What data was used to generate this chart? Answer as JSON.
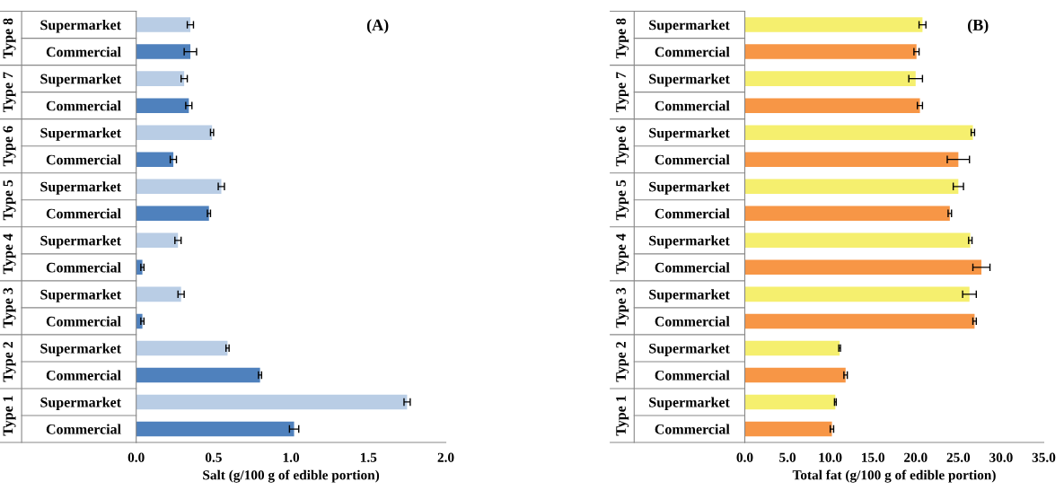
{
  "chart_data": [
    {
      "type": "bar",
      "orientation": "horizontal",
      "title": "(A)",
      "xlabel": "Salt (g/100 g of edible portion)",
      "categories": [
        "Supermarket",
        "Commercial",
        "Supermarket",
        "Commercial",
        "Supermarket",
        "Commercial",
        "Supermarket",
        "Commercial",
        "Supermarket",
        "Commercial",
        "Supermarket",
        "Commercial",
        "Supermarket",
        "Commercial",
        "Supermarket",
        "Commercial"
      ],
      "annotations": [
        "Type 8",
        "Type 7",
        "Type 6",
        "Type 5",
        "Type 4",
        "Type 3",
        "Type 2",
        "Type 1"
      ],
      "series": [
        {
          "values": [
            0.35,
            0.35,
            0.31,
            0.34,
            0.49,
            0.24,
            0.55,
            0.47,
            0.27,
            0.04,
            0.29,
            0.04,
            0.59,
            0.8,
            1.75,
            1.02
          ],
          "errors": [
            0.02,
            0.04,
            0.02,
            0.02,
            0.01,
            0.02,
            0.02,
            0.01,
            0.02,
            0.01,
            0.02,
            0.01,
            0.01,
            0.01,
            0.02,
            0.03
          ],
          "colors": [
            "#b9cde5",
            "#4f81bd",
            "#b9cde5",
            "#4f81bd",
            "#b9cde5",
            "#4f81bd",
            "#b9cde5",
            "#4f81bd",
            "#b9cde5",
            "#4f81bd",
            "#b9cde5",
            "#4f81bd",
            "#b9cde5",
            "#4f81bd",
            "#b9cde5",
            "#4f81bd"
          ]
        }
      ],
      "xlim": [
        0,
        2.0
      ],
      "xticks": [
        {
          "value": 0,
          "label": "0.0"
        },
        {
          "value": 0.5,
          "label": "0.5"
        },
        {
          "value": 1.0,
          "label": "1.0"
        },
        {
          "value": 1.5,
          "label": "1.5"
        },
        {
          "value": 2.0,
          "label": "2.0"
        }
      ],
      "grid": false,
      "legend": false
    },
    {
      "type": "bar",
      "orientation": "horizontal",
      "title": "(B)",
      "xlabel": "Total fat (g/100 g of edible portion)",
      "categories": [
        "Supermarket",
        "Commercial",
        "Supermarket",
        "Commercial",
        "Supermarket",
        "Commercial",
        "Supermarket",
        "Commercial",
        "Supermarket",
        "Commercial",
        "Supermarket",
        "Commercial",
        "Supermarket",
        "Commercial",
        "Supermarket",
        "Commercial"
      ],
      "annotations": [
        "Type 8",
        "Type 7",
        "Type 6",
        "Type 5",
        "Type 4",
        "Type 3",
        "Type 2",
        "Type 1"
      ],
      "series": [
        {
          "values": [
            20.8,
            20.1,
            20.0,
            20.5,
            26.7,
            25.0,
            25.0,
            24.0,
            26.4,
            27.7,
            26.3,
            26.9,
            11.1,
            11.8,
            10.6,
            10.2
          ],
          "errors": [
            0.4,
            0.3,
            0.8,
            0.3,
            0.2,
            1.3,
            0.6,
            0.2,
            0.2,
            1.0,
            0.8,
            0.2,
            0.1,
            0.2,
            0.1,
            0.2
          ],
          "colors": [
            "#f5ef6e",
            "#f79646",
            "#f5ef6e",
            "#f79646",
            "#f5ef6e",
            "#f79646",
            "#f5ef6e",
            "#f79646",
            "#f5ef6e",
            "#f79646",
            "#f5ef6e",
            "#f79646",
            "#f5ef6e",
            "#f79646",
            "#f5ef6e",
            "#f79646"
          ]
        }
      ],
      "xlim": [
        0,
        35.0
      ],
      "xticks": [
        {
          "value": 0,
          "label": "0.0"
        },
        {
          "value": 5,
          "label": "5.0"
        },
        {
          "value": 10,
          "label": "10.0"
        },
        {
          "value": 15,
          "label": "15.0"
        },
        {
          "value": 20,
          "label": "20.0"
        },
        {
          "value": 25,
          "label": "25.0"
        },
        {
          "value": 30,
          "label": "30.0"
        },
        {
          "value": 35,
          "label": "35.0"
        }
      ],
      "grid": false,
      "legend": false
    }
  ]
}
